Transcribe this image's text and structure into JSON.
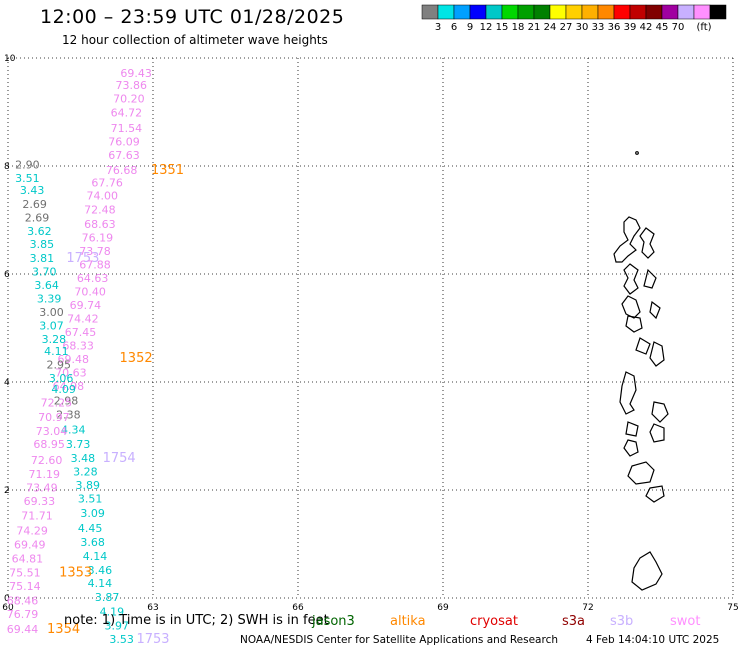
{
  "header": {
    "title": "12:00 – 23:59 UTC 01/28/2025",
    "subtitle": "12 hour collection of altimeter wave heights"
  },
  "legend": {
    "colors": [
      "#808080",
      "#00e5e5",
      "#00a0ff",
      "#0000ff",
      "#00c8c8",
      "#00d800",
      "#00a000",
      "#008000",
      "#ffff00",
      "#ffd000",
      "#ffb000",
      "#ff8800",
      "#ff0000",
      "#c00000",
      "#800000",
      "#a000a0",
      "#c8b0ff",
      "#ff90ff",
      "#000000"
    ],
    "labels": [
      "3",
      "6",
      "9",
      "12",
      "15",
      "18",
      "21",
      "24",
      "27",
      "30",
      "33",
      "36",
      "39",
      "42",
      "45",
      "70"
    ],
    "unit": "(ft)"
  },
  "axes": {
    "x_ticks": [
      "60",
      "63",
      "66",
      "69",
      "72",
      "75"
    ],
    "y_ticks": [
      "0",
      "2",
      "4",
      "6",
      "8",
      "10"
    ]
  },
  "map_data": {
    "lon_range": [
      60,
      75
    ],
    "lat_range": [
      0,
      10
    ],
    "labels": [
      {
        "text": "69.43",
        "lon": 62.65,
        "lat": 9.65,
        "color": "#ee88ee"
      },
      {
        "text": "73.86",
        "lon": 62.55,
        "lat": 9.43,
        "color": "#ee88ee"
      },
      {
        "text": "70.20",
        "lon": 62.5,
        "lat": 9.18,
        "color": "#ee88ee"
      },
      {
        "text": "64.72",
        "lon": 62.45,
        "lat": 8.92,
        "color": "#ee88ee"
      },
      {
        "text": "71.54",
        "lon": 62.45,
        "lat": 8.63,
        "color": "#ee88ee"
      },
      {
        "text": "76.09",
        "lon": 62.4,
        "lat": 8.38,
        "color": "#ee88ee"
      },
      {
        "text": "67.63",
        "lon": 62.4,
        "lat": 8.13,
        "color": "#ee88ee"
      },
      {
        "text": "76.68",
        "lon": 62.35,
        "lat": 7.85,
        "color": "#ee88ee"
      },
      {
        "text": "1351",
        "lon": 63.3,
        "lat": 7.85,
        "color": "#ff8800",
        "big": true
      },
      {
        "text": "2.90",
        "lon": 60.4,
        "lat": 7.95,
        "color": "#707070"
      },
      {
        "text": "3.51",
        "lon": 60.4,
        "lat": 7.7,
        "color": "#00c8c8"
      },
      {
        "text": "67.76",
        "lon": 62.05,
        "lat": 7.62,
        "color": "#ee88ee"
      },
      {
        "text": "3.43",
        "lon": 60.5,
        "lat": 7.48,
        "color": "#00c8c8"
      },
      {
        "text": "74.00",
        "lon": 61.95,
        "lat": 7.38,
        "color": "#ee88ee"
      },
      {
        "text": "2.69",
        "lon": 60.55,
        "lat": 7.22,
        "color": "#707070"
      },
      {
        "text": "72.48",
        "lon": 61.9,
        "lat": 7.12,
        "color": "#ee88ee"
      },
      {
        "text": "2.69",
        "lon": 60.6,
        "lat": 6.97,
        "color": "#707070"
      },
      {
        "text": "68.63",
        "lon": 61.9,
        "lat": 6.85,
        "color": "#ee88ee"
      },
      {
        "text": "3.62",
        "lon": 60.65,
        "lat": 6.72,
        "color": "#00c8c8"
      },
      {
        "text": "76.19",
        "lon": 61.85,
        "lat": 6.6,
        "color": "#ee88ee"
      },
      {
        "text": "3.85",
        "lon": 60.7,
        "lat": 6.48,
        "color": "#00c8c8"
      },
      {
        "text": "73.78",
        "lon": 61.8,
        "lat": 6.35,
        "color": "#ee88ee"
      },
      {
        "text": "3.81",
        "lon": 60.7,
        "lat": 6.22,
        "color": "#00c8c8"
      },
      {
        "text": "1753",
        "lon": 61.55,
        "lat": 6.22,
        "color": "#c8b0ff",
        "big": true
      },
      {
        "text": "67.88",
        "lon": 61.8,
        "lat": 6.1,
        "color": "#ee88ee"
      },
      {
        "text": "3.70",
        "lon": 60.75,
        "lat": 5.97,
        "color": "#00c8c8"
      },
      {
        "text": "64.63",
        "lon": 61.75,
        "lat": 5.85,
        "color": "#ee88ee"
      },
      {
        "text": "3.64",
        "lon": 60.8,
        "lat": 5.72,
        "color": "#00c8c8"
      },
      {
        "text": "70.40",
        "lon": 61.7,
        "lat": 5.6,
        "color": "#ee88ee"
      },
      {
        "text": "3.39",
        "lon": 60.85,
        "lat": 5.47,
        "color": "#00c8c8"
      },
      {
        "text": "69.74",
        "lon": 61.6,
        "lat": 5.35,
        "color": "#ee88ee"
      },
      {
        "text": "3.00",
        "lon": 60.9,
        "lat": 5.22,
        "color": "#707070"
      },
      {
        "text": "74.42",
        "lon": 61.55,
        "lat": 5.1,
        "color": "#ee88ee"
      },
      {
        "text": "3.07",
        "lon": 60.9,
        "lat": 4.97,
        "color": "#00c8c8"
      },
      {
        "text": "67.45",
        "lon": 61.5,
        "lat": 4.85,
        "color": "#ee88ee"
      },
      {
        "text": "3.28",
        "lon": 60.95,
        "lat": 4.72,
        "color": "#00c8c8"
      },
      {
        "text": "68.33",
        "lon": 61.45,
        "lat": 4.6,
        "color": "#ee88ee"
      },
      {
        "text": "4.11",
        "lon": 61.0,
        "lat": 4.5,
        "color": "#00c8c8"
      },
      {
        "text": "1352",
        "lon": 62.65,
        "lat": 4.37,
        "color": "#ff8800",
        "big": true
      },
      {
        "text": "69.48",
        "lon": 61.35,
        "lat": 4.35,
        "color": "#ee88ee"
      },
      {
        "text": "2.95",
        "lon": 61.05,
        "lat": 4.25,
        "color": "#707070"
      },
      {
        "text": "70.63",
        "lon": 61.3,
        "lat": 4.1,
        "color": "#ee88ee"
      },
      {
        "text": "3.06",
        "lon": 61.1,
        "lat": 4.0,
        "color": "#00c8c8"
      },
      {
        "text": "64.98",
        "lon": 61.25,
        "lat": 3.85,
        "color": "#ee88ee"
      },
      {
        "text": "4.09",
        "lon": 61.15,
        "lat": 3.8,
        "color": "#00c8c8"
      },
      {
        "text": "2.98",
        "lon": 61.2,
        "lat": 3.58,
        "color": "#707070"
      },
      {
        "text": "72.25",
        "lon": 61.0,
        "lat": 3.55,
        "color": "#ee88ee"
      },
      {
        "text": "2.38",
        "lon": 61.25,
        "lat": 3.32,
        "color": "#707070"
      },
      {
        "text": "70.97",
        "lon": 60.95,
        "lat": 3.28,
        "color": "#ee88ee"
      },
      {
        "text": "4.34",
        "lon": 61.35,
        "lat": 3.05,
        "color": "#00c8c8"
      },
      {
        "text": "73.04",
        "lon": 60.9,
        "lat": 3.02,
        "color": "#ee88ee"
      },
      {
        "text": "3.73",
        "lon": 61.45,
        "lat": 2.78,
        "color": "#00c8c8"
      },
      {
        "text": "68.95",
        "lon": 60.85,
        "lat": 2.78,
        "color": "#ee88ee"
      },
      {
        "text": "3.48",
        "lon": 61.55,
        "lat": 2.52,
        "color": "#00c8c8"
      },
      {
        "text": "1754",
        "lon": 62.3,
        "lat": 2.52,
        "color": "#c8b0ff",
        "big": true
      },
      {
        "text": "72.60",
        "lon": 60.8,
        "lat": 2.48,
        "color": "#ee88ee"
      },
      {
        "text": "3.28",
        "lon": 61.6,
        "lat": 2.27,
        "color": "#00c8c8"
      },
      {
        "text": "71.19",
        "lon": 60.75,
        "lat": 2.22,
        "color": "#ee88ee"
      },
      {
        "text": "3.89",
        "lon": 61.65,
        "lat": 2.02,
        "color": "#00c8c8"
      },
      {
        "text": "73.49",
        "lon": 60.7,
        "lat": 1.97,
        "color": "#ee88ee"
      },
      {
        "text": "3.51",
        "lon": 61.7,
        "lat": 1.77,
        "color": "#00c8c8"
      },
      {
        "text": "69.33",
        "lon": 60.65,
        "lat": 1.72,
        "color": "#ee88ee"
      },
      {
        "text": "3.09",
        "lon": 61.75,
        "lat": 1.5,
        "color": "#00c8c8"
      },
      {
        "text": "71.71",
        "lon": 60.6,
        "lat": 1.45,
        "color": "#ee88ee"
      },
      {
        "text": "4.45",
        "lon": 61.7,
        "lat": 1.22,
        "color": "#00c8c8"
      },
      {
        "text": "74.29",
        "lon": 60.5,
        "lat": 1.18,
        "color": "#ee88ee"
      },
      {
        "text": "3.68",
        "lon": 61.75,
        "lat": 0.96,
        "color": "#00c8c8"
      },
      {
        "text": "69.49",
        "lon": 60.45,
        "lat": 0.92,
        "color": "#ee88ee"
      },
      {
        "text": "4.14",
        "lon": 61.8,
        "lat": 0.7,
        "color": "#00c8c8"
      },
      {
        "text": "64.81",
        "lon": 60.4,
        "lat": 0.66,
        "color": "#ee88ee"
      },
      {
        "text": "3.46",
        "lon": 61.9,
        "lat": 0.44,
        "color": "#00c8c8"
      },
      {
        "text": "1353",
        "lon": 61.4,
        "lat": 0.4,
        "color": "#ff8800",
        "big": true
      },
      {
        "text": "75.51",
        "lon": 60.35,
        "lat": 0.4,
        "color": "#ee88ee"
      },
      {
        "text": "4.14",
        "lon": 61.9,
        "lat": 0.2,
        "color": "#00c8c8"
      },
      {
        "text": "75.14",
        "lon": 60.35,
        "lat": 0.15,
        "color": "#ee88ee"
      },
      {
        "text": "3.87",
        "lon": 62.05,
        "lat": -0.06,
        "color": "#00c8c8"
      },
      {
        "text": "68.46",
        "lon": 60.3,
        "lat": -0.12,
        "color": "#ee88ee"
      },
      {
        "text": "4.19",
        "lon": 62.15,
        "lat": -0.32,
        "color": "#00c8c8"
      },
      {
        "text": "76.79",
        "lon": 60.3,
        "lat": -0.37,
        "color": "#ee88ee"
      },
      {
        "text": "3.97",
        "lon": 62.25,
        "lat": -0.58,
        "color": "#00c8c8"
      },
      {
        "text": "1354",
        "lon": 61.15,
        "lat": -0.65,
        "color": "#ff8800",
        "big": true
      },
      {
        "text": "69.44",
        "lon": 60.3,
        "lat": -0.65,
        "color": "#ee88ee"
      },
      {
        "text": "3.53",
        "lon": 62.35,
        "lat": -0.83,
        "color": "#00c8c8"
      },
      {
        "text": "1753",
        "lon": 63.0,
        "lat": -0.83,
        "color": "#c8b0ff",
        "big": true
      }
    ]
  },
  "footer": {
    "note": "note: 1) Time is in UTC; 2) SWH is in feet",
    "satellites": [
      {
        "name": "jason3",
        "color": "#006400"
      },
      {
        "name": "altika",
        "color": "#ff8800"
      },
      {
        "name": "cryosat",
        "color": "#e00000"
      },
      {
        "name": "s3a",
        "color": "#900000"
      },
      {
        "name": "s3b",
        "color": "#c8b0ff"
      },
      {
        "name": "swot",
        "color": "#ff90ff"
      }
    ],
    "credit": "NOAA/NESDIS Center for Satellite Applications and Research",
    "timestamp": "4 Feb 14:04:10 UTC 2025"
  }
}
